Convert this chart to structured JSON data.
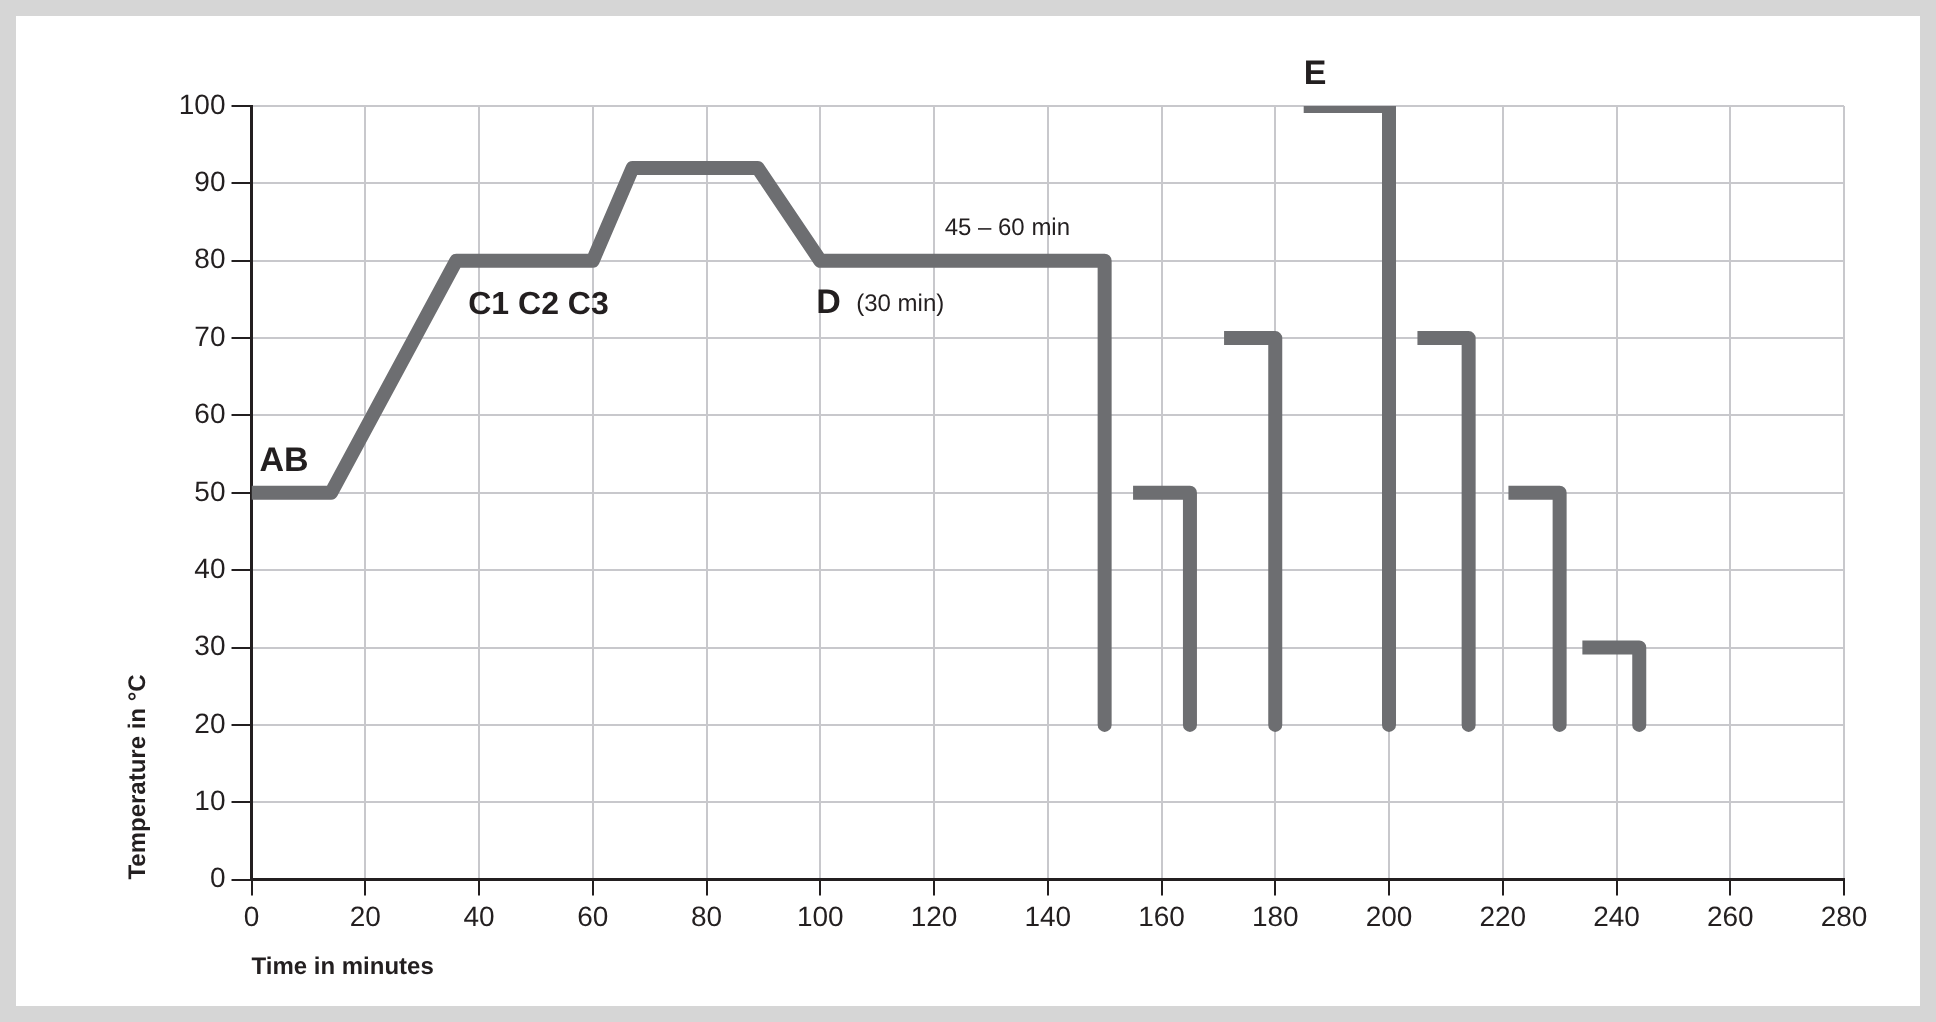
{
  "chart_data": {
    "type": "line",
    "xlabel": "Time in minutes",
    "ylabel": "Temperature in °C",
    "xlim": [
      0,
      280
    ],
    "xticks": [
      0,
      20,
      40,
      60,
      80,
      100,
      120,
      140,
      160,
      180,
      200,
      220,
      240,
      260,
      280
    ],
    "ylim": [
      0,
      100
    ],
    "yticks": [
      0,
      10,
      20,
      30,
      40,
      50,
      60,
      70,
      80,
      90,
      100
    ],
    "grid": true,
    "legend": false,
    "marker": "none",
    "line_style": "solid",
    "series": [
      {
        "color": "#6d6e71",
        "x": [
          0,
          14,
          36,
          60,
          67,
          89,
          100,
          150,
          150,
          152,
          155,
          165,
          165,
          167,
          171,
          180,
          180,
          182,
          185,
          200,
          200,
          202,
          205,
          214,
          214,
          216,
          221,
          230,
          230,
          232,
          234,
          244,
          244
        ],
        "values": [
          50,
          50,
          80,
          80,
          92,
          92,
          80,
          80,
          20,
          null,
          50,
          50,
          20,
          null,
          70,
          70,
          20,
          null,
          100,
          100,
          20,
          null,
          70,
          70,
          20,
          null,
          50,
          50,
          20,
          null,
          30,
          30,
          20
        ]
      }
    ],
    "annotations": [
      {
        "text": "AB",
        "x": 0,
        "y": 50
      },
      {
        "text": "C1 C2 C3",
        "x": 36,
        "y": 80
      },
      {
        "text": "D",
        "x": 100,
        "y": 80
      },
      {
        "text": "(30 min)",
        "x": 100,
        "y": 80
      },
      {
        "text": "45 – 60 min",
        "x": 150,
        "y": 80
      },
      {
        "text": "E",
        "x": 185,
        "y": 100
      }
    ]
  }
}
